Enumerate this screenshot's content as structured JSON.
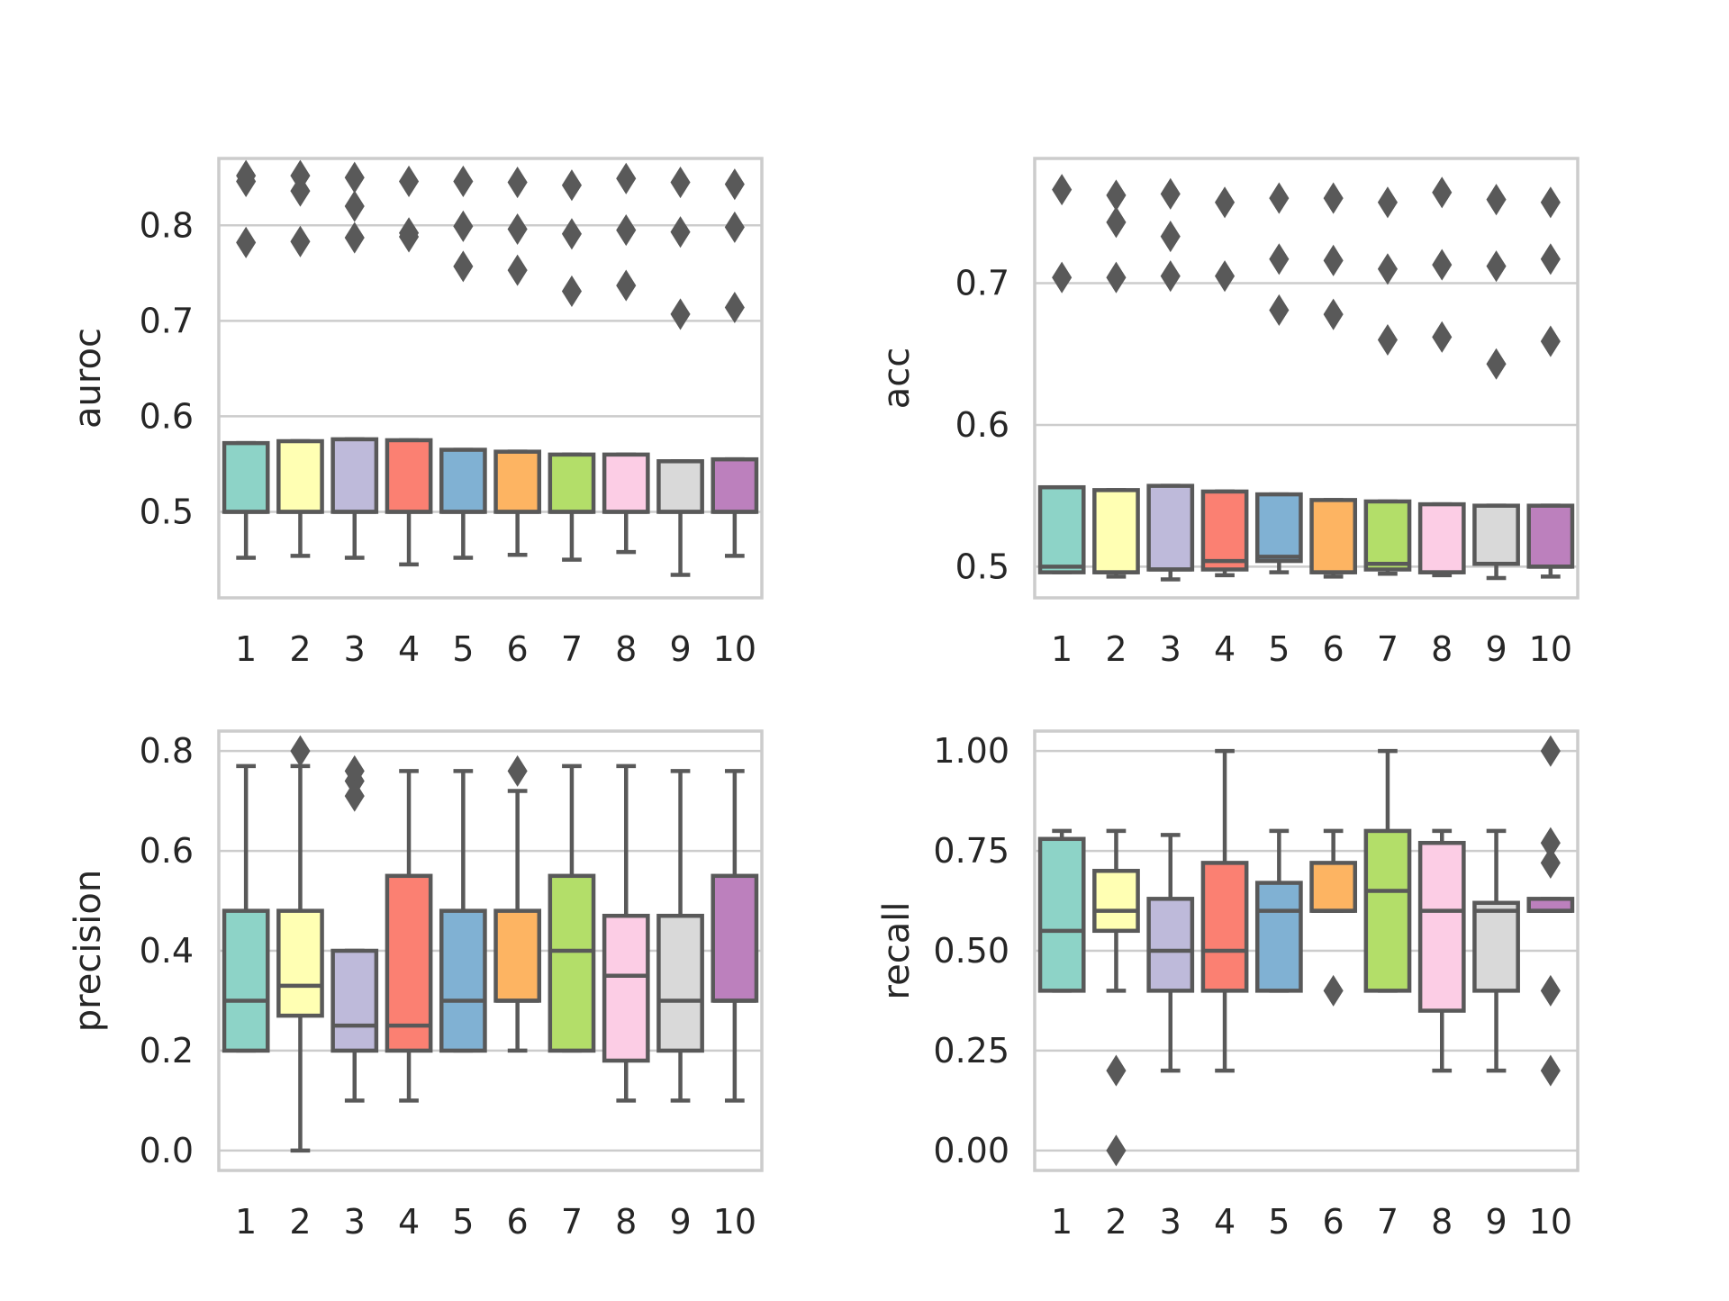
{
  "chart_data": [
    {
      "type": "box",
      "ylabel": "auroc",
      "categories": [
        "1",
        "2",
        "3",
        "4",
        "5",
        "6",
        "7",
        "8",
        "9",
        "10"
      ],
      "ylim": [
        0.41,
        0.87
      ],
      "yticks": [
        0.5,
        0.6,
        0.7,
        0.8
      ],
      "ytick_labels": [
        "0.5",
        "0.6",
        "0.7",
        "0.8"
      ],
      "boxes": [
        {
          "whislo": 0.452,
          "q1": 0.5,
          "med": 0.5,
          "q3": 0.572,
          "whishi": 0.572,
          "fliers": [
            0.852,
            0.846,
            0.782
          ]
        },
        {
          "whislo": 0.454,
          "q1": 0.5,
          "med": 0.5,
          "q3": 0.574,
          "whishi": 0.574,
          "fliers": [
            0.852,
            0.836,
            0.783
          ]
        },
        {
          "whislo": 0.452,
          "q1": 0.5,
          "med": 0.5,
          "q3": 0.576,
          "whishi": 0.576,
          "fliers": [
            0.85,
            0.82,
            0.787
          ]
        },
        {
          "whislo": 0.445,
          "q1": 0.5,
          "med": 0.5,
          "q3": 0.575,
          "whishi": 0.575,
          "fliers": [
            0.846,
            0.792,
            0.788
          ]
        },
        {
          "whislo": 0.452,
          "q1": 0.5,
          "med": 0.5,
          "q3": 0.565,
          "whishi": 0.565,
          "fliers": [
            0.846,
            0.799,
            0.757
          ]
        },
        {
          "whislo": 0.455,
          "q1": 0.5,
          "med": 0.5,
          "q3": 0.563,
          "whishi": 0.563,
          "fliers": [
            0.845,
            0.796,
            0.753
          ]
        },
        {
          "whislo": 0.45,
          "q1": 0.5,
          "med": 0.5,
          "q3": 0.56,
          "whishi": 0.56,
          "fliers": [
            0.842,
            0.791,
            0.731
          ]
        },
        {
          "whislo": 0.458,
          "q1": 0.5,
          "med": 0.5,
          "q3": 0.56,
          "whishi": 0.56,
          "fliers": [
            0.849,
            0.795,
            0.737
          ]
        },
        {
          "whislo": 0.434,
          "q1": 0.5,
          "med": 0.5,
          "q3": 0.553,
          "whishi": 0.553,
          "fliers": [
            0.845,
            0.793,
            0.707
          ]
        },
        {
          "whislo": 0.454,
          "q1": 0.5,
          "med": 0.5,
          "q3": 0.555,
          "whishi": 0.555,
          "fliers": [
            0.843,
            0.798,
            0.714
          ]
        }
      ]
    },
    {
      "type": "box",
      "ylabel": "acc",
      "categories": [
        "1",
        "2",
        "3",
        "4",
        "5",
        "6",
        "7",
        "8",
        "9",
        "10"
      ],
      "ylim": [
        0.478,
        0.788
      ],
      "yticks": [
        0.5,
        0.6,
        0.7
      ],
      "ytick_labels": [
        "0.5",
        "0.6",
        "0.7"
      ],
      "boxes": [
        {
          "whislo": 0.496,
          "q1": 0.496,
          "med": 0.5,
          "q3": 0.556,
          "whishi": 0.556,
          "fliers": [
            0.766,
            0.704
          ]
        },
        {
          "whislo": 0.493,
          "q1": 0.496,
          "med": 0.496,
          "q3": 0.554,
          "whishi": 0.554,
          "fliers": [
            0.762,
            0.743,
            0.704
          ]
        },
        {
          "whislo": 0.491,
          "q1": 0.498,
          "med": 0.498,
          "q3": 0.557,
          "whishi": 0.557,
          "fliers": [
            0.763,
            0.733,
            0.705
          ]
        },
        {
          "whislo": 0.494,
          "q1": 0.498,
          "med": 0.504,
          "q3": 0.553,
          "whishi": 0.553,
          "fliers": [
            0.757,
            0.705
          ]
        },
        {
          "whislo": 0.496,
          "q1": 0.504,
          "med": 0.507,
          "q3": 0.551,
          "whishi": 0.551,
          "fliers": [
            0.76,
            0.717,
            0.681
          ]
        },
        {
          "whislo": 0.493,
          "q1": 0.496,
          "med": 0.496,
          "q3": 0.547,
          "whishi": 0.547,
          "fliers": [
            0.76,
            0.716,
            0.678
          ]
        },
        {
          "whislo": 0.495,
          "q1": 0.498,
          "med": 0.502,
          "q3": 0.546,
          "whishi": 0.546,
          "fliers": [
            0.757,
            0.71,
            0.66
          ]
        },
        {
          "whislo": 0.494,
          "q1": 0.496,
          "med": 0.496,
          "q3": 0.544,
          "whishi": 0.544,
          "fliers": [
            0.764,
            0.713,
            0.662
          ]
        },
        {
          "whislo": 0.492,
          "q1": 0.502,
          "med": 0.502,
          "q3": 0.543,
          "whishi": 0.543,
          "fliers": [
            0.759,
            0.712,
            0.643
          ]
        },
        {
          "whislo": 0.493,
          "q1": 0.5,
          "med": 0.5,
          "q3": 0.543,
          "whishi": 0.543,
          "fliers": [
            0.757,
            0.717,
            0.659
          ]
        }
      ]
    },
    {
      "type": "box",
      "ylabel": "precision",
      "categories": [
        "1",
        "2",
        "3",
        "4",
        "5",
        "6",
        "7",
        "8",
        "9",
        "10"
      ],
      "ylim": [
        -0.04,
        0.84
      ],
      "yticks": [
        0.0,
        0.2,
        0.4,
        0.6,
        0.8
      ],
      "ytick_labels": [
        "0.0",
        "0.2",
        "0.4",
        "0.6",
        "0.8"
      ],
      "boxes": [
        {
          "whislo": 0.2,
          "q1": 0.2,
          "med": 0.3,
          "q3": 0.48,
          "whishi": 0.77,
          "fliers": []
        },
        {
          "whislo": 0.0,
          "q1": 0.27,
          "med": 0.33,
          "q3": 0.48,
          "whishi": 0.77,
          "fliers": [
            0.8
          ]
        },
        {
          "whislo": 0.1,
          "q1": 0.2,
          "med": 0.25,
          "q3": 0.4,
          "whishi": 0.4,
          "fliers": [
            0.76,
            0.74,
            0.71
          ]
        },
        {
          "whislo": 0.1,
          "q1": 0.2,
          "med": 0.25,
          "q3": 0.55,
          "whishi": 0.76,
          "fliers": []
        },
        {
          "whislo": 0.2,
          "q1": 0.2,
          "med": 0.3,
          "q3": 0.48,
          "whishi": 0.76,
          "fliers": []
        },
        {
          "whislo": 0.2,
          "q1": 0.3,
          "med": 0.3,
          "q3": 0.48,
          "whishi": 0.72,
          "fliers": [
            0.76
          ]
        },
        {
          "whislo": 0.2,
          "q1": 0.2,
          "med": 0.4,
          "q3": 0.55,
          "whishi": 0.77,
          "fliers": []
        },
        {
          "whislo": 0.1,
          "q1": 0.18,
          "med": 0.35,
          "q3": 0.47,
          "whishi": 0.77,
          "fliers": []
        },
        {
          "whislo": 0.1,
          "q1": 0.2,
          "med": 0.3,
          "q3": 0.47,
          "whishi": 0.76,
          "fliers": []
        },
        {
          "whislo": 0.1,
          "q1": 0.3,
          "med": 0.3,
          "q3": 0.55,
          "whishi": 0.76,
          "fliers": []
        }
      ]
    },
    {
      "type": "box",
      "ylabel": "recall",
      "categories": [
        "1",
        "2",
        "3",
        "4",
        "5",
        "6",
        "7",
        "8",
        "9",
        "10"
      ],
      "ylim": [
        -0.05,
        1.05
      ],
      "yticks": [
        0.0,
        0.25,
        0.5,
        0.75,
        1.0
      ],
      "ytick_labels": [
        "0.00",
        "0.25",
        "0.50",
        "0.75",
        "1.00"
      ],
      "boxes": [
        {
          "whislo": 0.4,
          "q1": 0.4,
          "med": 0.55,
          "q3": 0.78,
          "whishi": 0.8,
          "fliers": []
        },
        {
          "whislo": 0.4,
          "q1": 0.55,
          "med": 0.6,
          "q3": 0.7,
          "whishi": 0.8,
          "fliers": [
            0.2,
            0.0
          ]
        },
        {
          "whislo": 0.2,
          "q1": 0.4,
          "med": 0.5,
          "q3": 0.63,
          "whishi": 0.79,
          "fliers": []
        },
        {
          "whislo": 0.2,
          "q1": 0.4,
          "med": 0.5,
          "q3": 0.72,
          "whishi": 1.0,
          "fliers": []
        },
        {
          "whislo": 0.4,
          "q1": 0.4,
          "med": 0.6,
          "q3": 0.67,
          "whishi": 0.8,
          "fliers": []
        },
        {
          "whislo": 0.6,
          "q1": 0.6,
          "med": 0.6,
          "q3": 0.72,
          "whishi": 0.8,
          "fliers": [
            0.4
          ]
        },
        {
          "whislo": 0.4,
          "q1": 0.4,
          "med": 0.65,
          "q3": 0.8,
          "whishi": 1.0,
          "fliers": []
        },
        {
          "whislo": 0.2,
          "q1": 0.35,
          "med": 0.6,
          "q3": 0.77,
          "whishi": 0.8,
          "fliers": []
        },
        {
          "whislo": 0.2,
          "q1": 0.4,
          "med": 0.6,
          "q3": 0.62,
          "whishi": 0.8,
          "fliers": []
        },
        {
          "whislo": 0.6,
          "q1": 0.6,
          "med": 0.6,
          "q3": 0.63,
          "whishi": 0.63,
          "fliers": [
            1.0,
            0.77,
            0.72,
            0.4,
            0.2
          ]
        }
      ]
    }
  ],
  "palette": [
    "#8dd3c7",
    "#ffffb3",
    "#bebada",
    "#fb8072",
    "#80b1d3",
    "#fdb462",
    "#b3de69",
    "#fccde5",
    "#d9d9d9",
    "#bc80bd"
  ],
  "style": {
    "line_color": "#595959",
    "grid_color": "#cccccc",
    "frame_color": "#cccccc",
    "grid": true
  }
}
